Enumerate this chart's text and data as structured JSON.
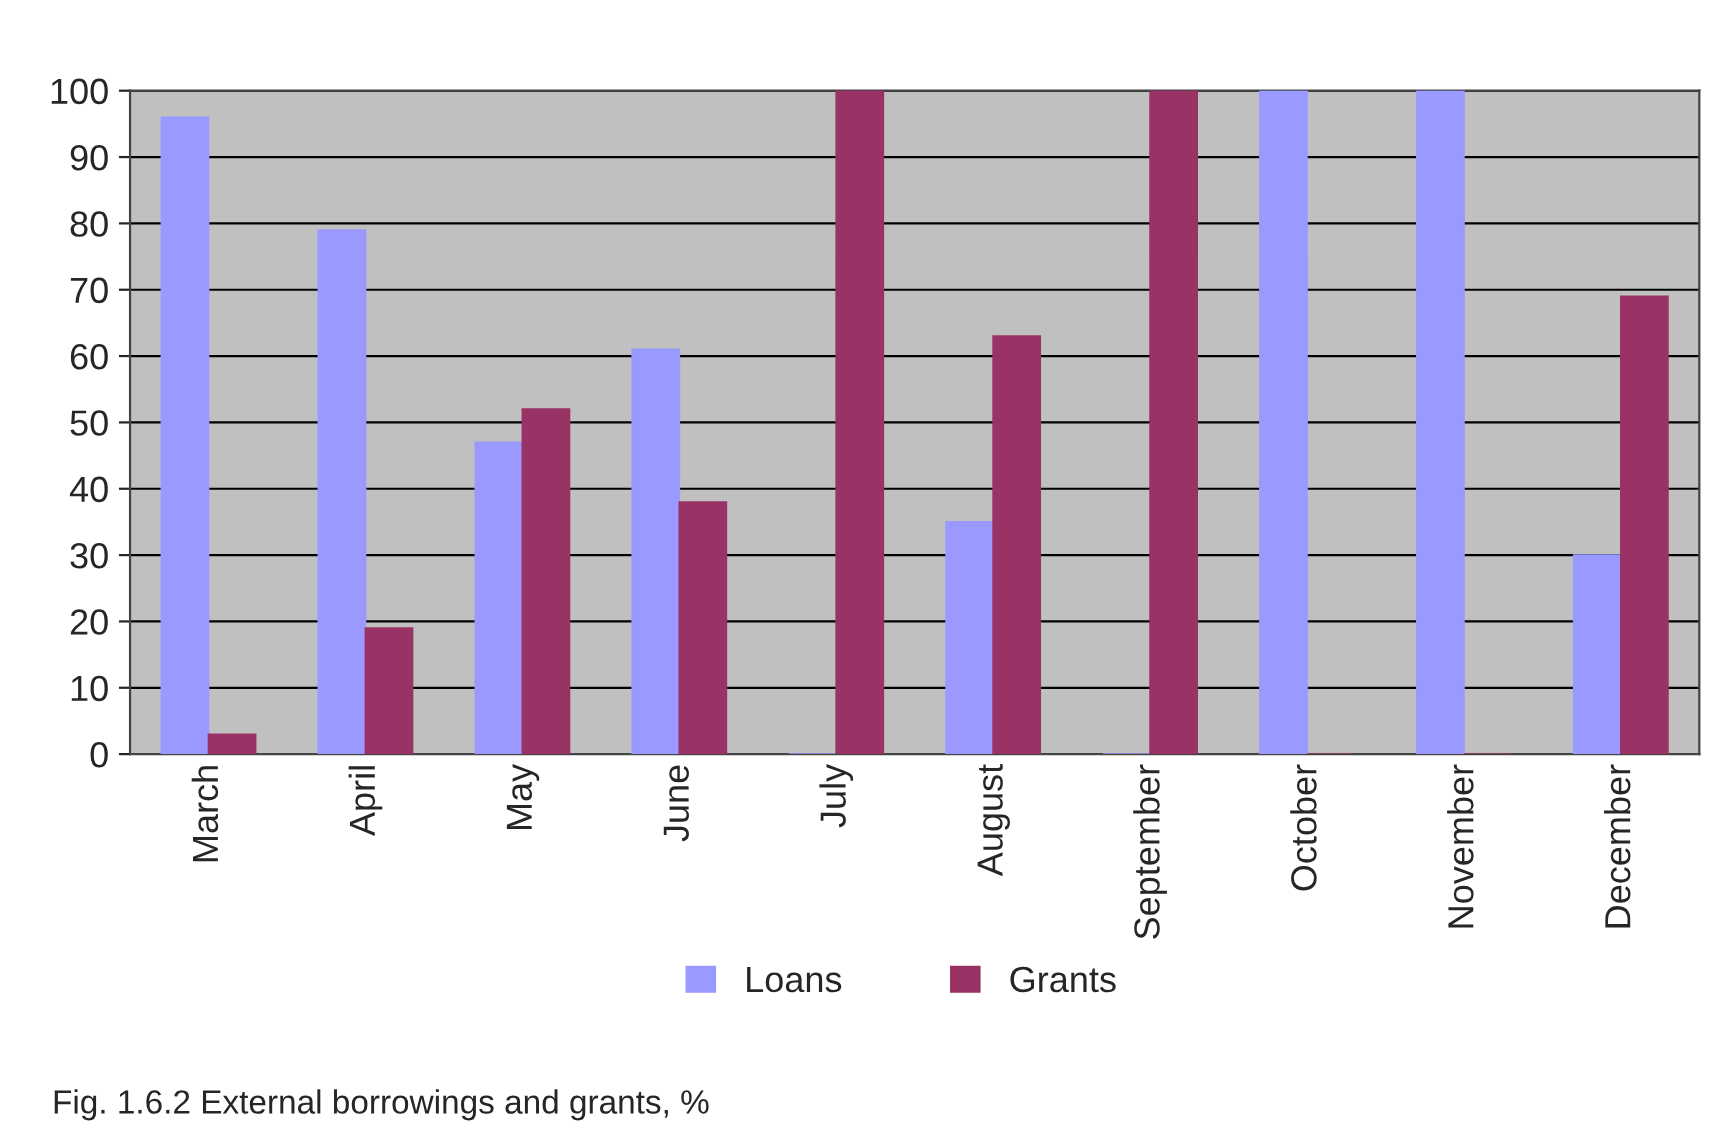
{
  "chart_data": {
    "type": "bar",
    "categories": [
      "March",
      "April",
      "May",
      "June",
      "July",
      "August",
      "September",
      "October",
      "November",
      "December"
    ],
    "series": [
      {
        "name": "Loans",
        "color": "#9999ff",
        "values": [
          96,
          79,
          47,
          61,
          0,
          35,
          0,
          100,
          100,
          30
        ]
      },
      {
        "name": "Grants",
        "color": "#993366",
        "values": [
          3,
          19,
          52,
          38,
          100,
          63,
          100,
          0,
          0,
          69
        ]
      }
    ],
    "ylim": [
      0,
      100
    ],
    "yticks": [
      0,
      10,
      20,
      30,
      40,
      50,
      60,
      70,
      80,
      90,
      100
    ],
    "grid": "y",
    "legend": "bottom",
    "annotations": [
      "Fig. 1.6.2 External borrowings and grants, %"
    ]
  }
}
